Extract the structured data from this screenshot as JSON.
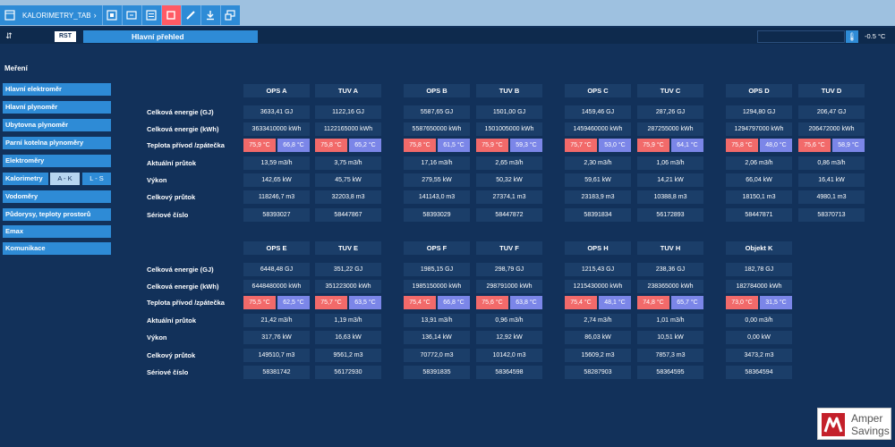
{
  "tab": {
    "name": "KALORIMETRY_TAB"
  },
  "header": {
    "rst_label": "RST",
    "title": "Hlavní přehled",
    "temperature": "-0.5 °C"
  },
  "sidebar": {
    "section_title": "Meření",
    "items": [
      {
        "label": "Hlavní elektroměr"
      },
      {
        "label": "Hlavní plynoměr"
      },
      {
        "label": "Ubytovna plynoměr"
      },
      {
        "label": "Parní kotelna plynoměry"
      },
      {
        "label": "Elektroměry"
      },
      {
        "label": "Kalorimetry"
      },
      {
        "label": "Vodoměry"
      },
      {
        "label": "Půdorysy, teploty prostorů"
      },
      {
        "label": "Emax"
      },
      {
        "label": "Komunikace"
      }
    ],
    "kalorimetry_sub": [
      "A - K",
      "L - S"
    ]
  },
  "row_labels": [
    "Celková energie (GJ)",
    "Celková energie (kWh)",
    "Teplota přívod /zpátečka",
    "Aktuální průtok",
    "Výkon",
    "Celkový průtok",
    "Sériové číslo"
  ],
  "blocks": [
    {
      "name": "OPS A",
      "gj": "3633,41 GJ",
      "kwh": "3633410000 kWh",
      "t_supply": "75,9 °C",
      "t_return": "66,8 °C",
      "flow": "13,59 m3/h",
      "power": "142,65 kW",
      "total_flow": "118246,7 m3",
      "serial": "58393027"
    },
    {
      "name": "TUV A",
      "gj": "1122,16 GJ",
      "kwh": "1122165000 kWh",
      "t_supply": "75,8 °C",
      "t_return": "65,2 °C",
      "flow": "3,75 m3/h",
      "power": "45,75 kW",
      "total_flow": "32203,8 m3",
      "serial": "58447867"
    },
    {
      "name": "OPS B",
      "gj": "5587,65 GJ",
      "kwh": "5587650000 kWh",
      "t_supply": "75,8 °C",
      "t_return": "61,5 °C",
      "flow": "17,16 m3/h",
      "power": "279,55 kW",
      "total_flow": "141143,0 m3",
      "serial": "58393029"
    },
    {
      "name": "TUV B",
      "gj": "1501,00 GJ",
      "kwh": "1501005000 kWh",
      "t_supply": "75,9 °C",
      "t_return": "59,3 °C",
      "flow": "2,65 m3/h",
      "power": "50,32 kW",
      "total_flow": "27374,1 m3",
      "serial": "58447872"
    },
    {
      "name": "OPS C",
      "gj": "1459,46 GJ",
      "kwh": "1459460000 kWh",
      "t_supply": "75,7 °C",
      "t_return": "53,0 °C",
      "flow": "2,30 m3/h",
      "power": "59,61 kW",
      "total_flow": "23183,9 m3",
      "serial": "58391834"
    },
    {
      "name": "TUV C",
      "gj": "287,26 GJ",
      "kwh": "287255000 kWh",
      "t_supply": "75,9 °C",
      "t_return": "64,1 °C",
      "flow": "1,06 m3/h",
      "power": "14,21 kW",
      "total_flow": "10388,8 m3",
      "serial": "56172893"
    },
    {
      "name": "OPS D",
      "gj": "1294,80 GJ",
      "kwh": "1294797000 kWh",
      "t_supply": "75,8 °C",
      "t_return": "48,0 °C",
      "flow": "2,06 m3/h",
      "power": "66,04 kW",
      "total_flow": "18150,1 m3",
      "serial": "58447871"
    },
    {
      "name": "TUV D",
      "gj": "206,47 GJ",
      "kwh": "206472000 kWh",
      "t_supply": "75,6 °C",
      "t_return": "58,9 °C",
      "flow": "0,86 m3/h",
      "power": "16,41 kW",
      "total_flow": "4980,1 m3",
      "serial": "58370713"
    },
    {
      "name": "OPS E",
      "gj": "6448,48 GJ",
      "kwh": "6448480000 kWh",
      "t_supply": "75,5 °C",
      "t_return": "62,5 °C",
      "flow": "21,42 m3/h",
      "power": "317,76 kW",
      "total_flow": "149510,7 m3",
      "serial": "58381742"
    },
    {
      "name": "TUV E",
      "gj": "351,22 GJ",
      "kwh": "351223000 kWh",
      "t_supply": "75,7 °C",
      "t_return": "63,5 °C",
      "flow": "1,19 m3/h",
      "power": "16,63 kW",
      "total_flow": "9561,2 m3",
      "serial": "56172930"
    },
    {
      "name": "OPS F",
      "gj": "1985,15 GJ",
      "kwh": "1985150000 kWh",
      "t_supply": "75,4 °C",
      "t_return": "66,8 °C",
      "flow": "13,91 m3/h",
      "power": "136,14 kW",
      "total_flow": "70772,0 m3",
      "serial": "58391835"
    },
    {
      "name": "TUV F",
      "gj": "298,79 GJ",
      "kwh": "298791000 kWh",
      "t_supply": "75,6 °C",
      "t_return": "63,8 °C",
      "flow": "0,96 m3/h",
      "power": "12,92 kW",
      "total_flow": "10142,0 m3",
      "serial": "58364598"
    },
    {
      "name": "OPS H",
      "gj": "1215,43 GJ",
      "kwh": "1215430000 kWh",
      "t_supply": "75,4 °C",
      "t_return": "48,1 °C",
      "flow": "2,74 m3/h",
      "power": "86,03 kW",
      "total_flow": "15609,2 m3",
      "serial": "58287903"
    },
    {
      "name": "TUV H",
      "gj": "238,36 GJ",
      "kwh": "238365000 kWh",
      "t_supply": "74,8 °C",
      "t_return": "65,7 °C",
      "flow": "1,01 m3/h",
      "power": "10,51 kW",
      "total_flow": "7857,3 m3",
      "serial": "58364595"
    },
    {
      "name": "Objekt K",
      "gj": "182,78 GJ",
      "kwh": "182784000 kWh",
      "t_supply": "73,0 °C",
      "t_return": "31,5 °C",
      "flow": "0,00 m3/h",
      "power": "0,00 kW",
      "total_flow": "3473,2 m3",
      "serial": "58364594"
    }
  ],
  "logo": {
    "line1": "Amper",
    "line2": "Savings"
  },
  "colors": {
    "background": "#12315a",
    "accent": "#2e8bd6",
    "hot": "#f26a6a",
    "cold": "#7b86e8",
    "logo_red": "#c4202a"
  },
  "icons": [
    "menu-icon",
    "chevron-right-icon",
    "view-icon",
    "expand-icon",
    "list-icon",
    "stop-icon",
    "pen-icon",
    "download-icon",
    "window-icon",
    "collapse-icon",
    "thermometer-icon"
  ]
}
